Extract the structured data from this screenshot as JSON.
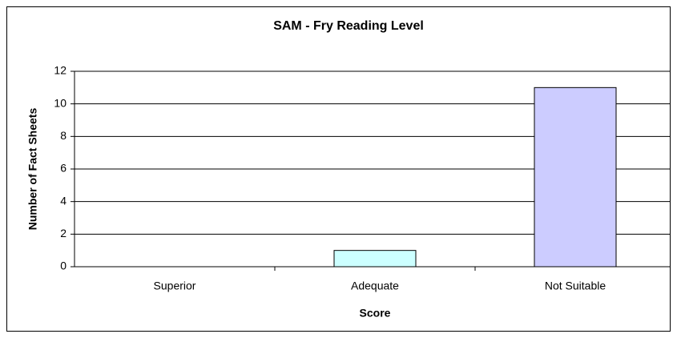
{
  "chart_data": {
    "type": "bar",
    "title": "SAM - Fry Reading Level",
    "categories": [
      "Superior",
      "Adequate",
      "Not Suitable"
    ],
    "values": [
      0,
      1,
      11
    ],
    "colors": [
      "#ffffcc",
      "#ccffff",
      "#ccccff"
    ],
    "x_label": "Score",
    "y_label": "Number of Fact Sheets",
    "ylim": [
      0,
      12
    ],
    "yticks": [
      0,
      2,
      4,
      6,
      8,
      10,
      12
    ],
    "grid": true
  }
}
